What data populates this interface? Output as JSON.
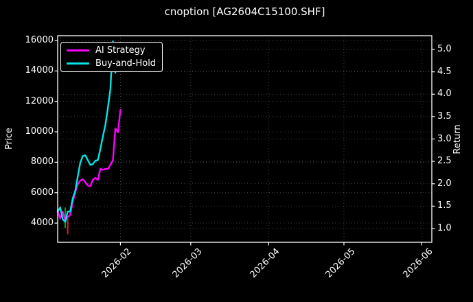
{
  "figure": {
    "background": "#000000",
    "text_color": "#ffffff",
    "grid_color": "#9a9a9a"
  },
  "chart_data": {
    "type": "line",
    "title": "cnoption [AG2604C15100.SHF]",
    "ylabel_left": "Price",
    "ylabel_right": "Return",
    "legend_position": "upper-left",
    "grid": "dotted, both axes",
    "xlim": [
      "2026-01-07",
      "2026-06-05"
    ],
    "ylim_left": [
      2740,
      16320
    ],
    "ylim_right": [
      0.693,
      5.307
    ],
    "x_ticks": [
      {
        "label": "2026-02",
        "date": "2026-02-01"
      },
      {
        "label": "2026-03",
        "date": "2026-03-01"
      },
      {
        "label": "2026-04",
        "date": "2026-04-01"
      },
      {
        "label": "2026-05",
        "date": "2026-05-01"
      },
      {
        "label": "2026-06",
        "date": "2026-06-01"
      }
    ],
    "y_ticks_left": [
      {
        "label": "4000",
        "value": 4000
      },
      {
        "label": "6000",
        "value": 6000
      },
      {
        "label": "8000",
        "value": 8000
      },
      {
        "label": "10000",
        "value": 10000
      },
      {
        "label": "12000",
        "value": 12000
      },
      {
        "label": "14000",
        "value": 14000
      },
      {
        "label": "16000",
        "value": 16000
      }
    ],
    "y_ticks_right": [
      {
        "label": "1.0",
        "value": 1.0
      },
      {
        "label": "1.5",
        "value": 1.5
      },
      {
        "label": "2.0",
        "value": 2.0
      },
      {
        "label": "2.5",
        "value": 2.5
      },
      {
        "label": "3.0",
        "value": 3.0
      },
      {
        "label": "3.5",
        "value": 3.5
      },
      {
        "label": "4.0",
        "value": 4.0
      },
      {
        "label": "4.5",
        "value": 4.5
      },
      {
        "label": "5.0",
        "value": 5.0
      }
    ],
    "series": [
      {
        "name": "AI Strategy",
        "color": "#ff00ff",
        "axis": "left",
        "dates": [
          "2026-01-07",
          "2026-01-08",
          "2026-01-09",
          "2026-01-10",
          "2026-01-11",
          "2026-01-12",
          "2026-01-13",
          "2026-01-14",
          "2026-01-15",
          "2026-01-16",
          "2026-01-17",
          "2026-01-18",
          "2026-01-19",
          "2026-01-20",
          "2026-01-21",
          "2026-01-22",
          "2026-01-23",
          "2026-01-24",
          "2026-01-25",
          "2026-01-26",
          "2026-01-27",
          "2026-01-28",
          "2026-01-29",
          "2026-01-30",
          "2026-01-31",
          "2026-02-01"
        ],
        "values": [
          4800,
          4300,
          4760,
          4170,
          4400,
          4530,
          5390,
          6020,
          6560,
          6790,
          6880,
          6700,
          6470,
          6430,
          6840,
          6970,
          6840,
          7560,
          7510,
          7560,
          7560,
          7830,
          8140,
          10230,
          9960,
          11440
        ]
      },
      {
        "name": "Buy-and-Hold",
        "color": "#00e5e5",
        "axis": "left",
        "dates": [
          "2026-01-07",
          "2026-01-08",
          "2026-01-09",
          "2026-01-10",
          "2026-01-11",
          "2026-01-12",
          "2026-01-13",
          "2026-01-14",
          "2026-01-15",
          "2026-01-16",
          "2026-01-17",
          "2026-01-18",
          "2026-01-19",
          "2026-01-20",
          "2026-01-21",
          "2026-01-22",
          "2026-01-23",
          "2026-01-24",
          "2026-01-25",
          "2026-01-26",
          "2026-01-27",
          "2026-01-28",
          "2026-01-29",
          "2026-01-30",
          "2026-01-31"
        ],
        "values": [
          4760,
          5030,
          4260,
          4080,
          4760,
          4760,
          5620,
          6110,
          7060,
          7960,
          8410,
          8460,
          8140,
          7830,
          7870,
          8100,
          8140,
          8870,
          9680,
          10450,
          11580,
          12800,
          15950,
          13880,
          15730
        ]
      }
    ],
    "signals": [
      {
        "name": "buy-signal",
        "color": "#0fa30f",
        "date": "2026-01-10",
        "price_from": 3680,
        "price_to": 5030
      },
      {
        "name": "sell-signal",
        "color": "#dd2222",
        "date": "2026-01-11",
        "price_from": 3270,
        "price_to": 4310
      }
    ]
  }
}
